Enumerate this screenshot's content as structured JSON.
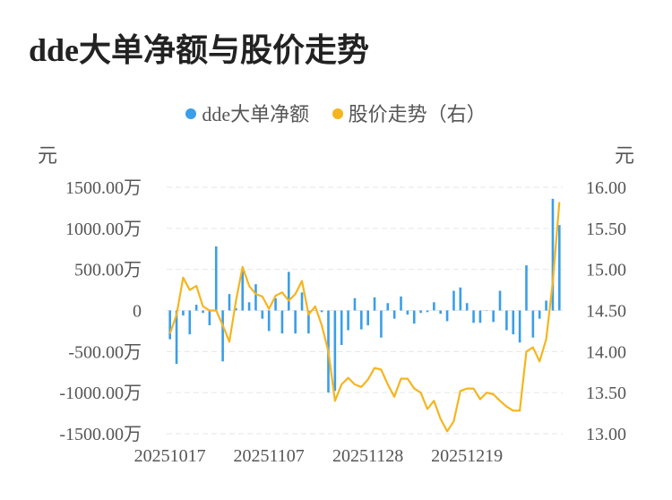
{
  "title": "dde大单净额与股价走势",
  "legend": [
    {
      "label": "dde大单净额",
      "color": "#3a9ee8"
    },
    {
      "label": "股价走势（右）",
      "color": "#f5b51e"
    }
  ],
  "units": {
    "left": "元",
    "right": "元"
  },
  "chart_data": {
    "type": "bar",
    "title": "dde大单净额与股价走势",
    "xlabel": "",
    "ylabel": "元",
    "y2label": "元",
    "ylim": [
      -1500,
      1500
    ],
    "y2lim": [
      13.0,
      16.0
    ],
    "y_ticks": [
      1500,
      1000,
      500,
      0,
      -500,
      -1000,
      -1500
    ],
    "y_tick_labels": [
      "1500.00万",
      "1000.00万",
      "500.00万",
      "0",
      "-500.00万",
      "-1000.00万",
      "-1500.00万"
    ],
    "y2_ticks": [
      16,
      15.5,
      15,
      14.5,
      14,
      13.5,
      13
    ],
    "y2_tick_labels": [
      "16.00",
      "15.50",
      "15.00",
      "14.50",
      "14.00",
      "13.50",
      "13.00"
    ],
    "x_tick_labels": [
      {
        "index": 0,
        "label": "20251017"
      },
      {
        "index": 15,
        "label": "20251107"
      },
      {
        "index": 30,
        "label": "20251128"
      },
      {
        "index": 45,
        "label": "20251219"
      }
    ],
    "grid": true,
    "legend_position": "top",
    "series": [
      {
        "name": "dde大单净额",
        "type": "bar",
        "axis": "left",
        "color": "#3a9ee8",
        "values": [
          -350,
          -650,
          -60,
          -290,
          70,
          -30,
          -180,
          780,
          -620,
          200,
          30,
          500,
          100,
          320,
          -100,
          -250,
          150,
          -280,
          470,
          -280,
          220,
          -280,
          0,
          -20,
          -1000,
          -980,
          -420,
          -240,
          150,
          -230,
          -180,
          160,
          -330,
          90,
          -100,
          170,
          -50,
          -160,
          -30,
          -20,
          100,
          -40,
          -130,
          240,
          280,
          90,
          -150,
          -150,
          0,
          -140,
          240,
          -240,
          -290,
          -390,
          550,
          -330,
          -100,
          120,
          1360,
          1040
        ]
      },
      {
        "name": "股价走势（右）",
        "type": "line",
        "axis": "right",
        "color": "#f5b51e",
        "values": [
          14.22,
          14.45,
          14.9,
          14.75,
          14.8,
          14.55,
          14.5,
          14.5,
          14.32,
          14.12,
          14.62,
          15.03,
          14.8,
          14.7,
          14.67,
          14.52,
          14.68,
          14.72,
          14.62,
          14.7,
          14.86,
          14.45,
          14.55,
          14.32,
          14.0,
          13.4,
          13.6,
          13.68,
          13.6,
          13.57,
          13.66,
          13.8,
          13.78,
          13.6,
          13.45,
          13.67,
          13.67,
          13.55,
          13.5,
          13.3,
          13.4,
          13.18,
          13.03,
          13.15,
          13.52,
          13.55,
          13.55,
          13.42,
          13.5,
          13.48,
          13.4,
          13.33,
          13.28,
          13.28,
          14.0,
          14.05,
          13.88,
          14.15,
          14.85,
          15.82
        ]
      }
    ]
  }
}
